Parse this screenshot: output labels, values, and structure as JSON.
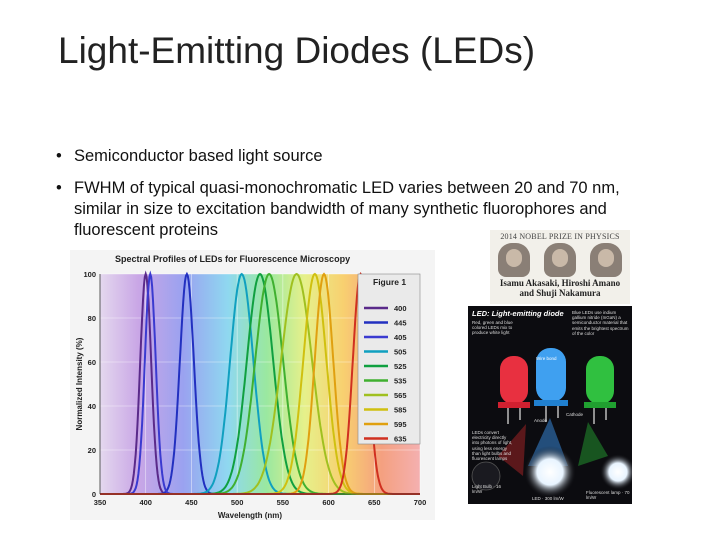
{
  "slide": {
    "title": "Light-Emitting Diodes (LEDs)",
    "bullets": [
      "Semiconductor based light source",
      "FWHM of typical quasi-monochromatic LED varies between 20 and 70 nm, similar in size to excitation bandwidth of many synthetic fluorophores and fluorescent proteins"
    ],
    "bullet_glyph": "•"
  },
  "chart_data": {
    "type": "line",
    "title": "Spectral Profiles of LEDs for Fluorescence Microscopy",
    "figure_label": "Figure 1",
    "xlabel": "Wavelength (nm)",
    "ylabel": "Normalized Intensity (%)",
    "xlim": [
      350,
      700
    ],
    "ylim": [
      0,
      100
    ],
    "xticks": [
      350,
      400,
      450,
      500,
      550,
      600,
      650,
      700
    ],
    "yticks": [
      0,
      20,
      40,
      60,
      80,
      100
    ],
    "legend_position": "right",
    "series": [
      {
        "name": "400",
        "peak": 400,
        "fwhm": 14,
        "color": "#5a2a8a"
      },
      {
        "name": "445",
        "peak": 445,
        "fwhm": 18,
        "color": "#2230c0"
      },
      {
        "name": "405",
        "peak": 405,
        "fwhm": 14,
        "color": "#3a3ad0"
      },
      {
        "name": "505",
        "peak": 505,
        "fwhm": 30,
        "color": "#10a0c0"
      },
      {
        "name": "525",
        "peak": 525,
        "fwhm": 34,
        "color": "#10a040"
      },
      {
        "name": "535",
        "peak": 535,
        "fwhm": 36,
        "color": "#40b030"
      },
      {
        "name": "565",
        "peak": 565,
        "fwhm": 40,
        "color": "#a0c020"
      },
      {
        "name": "585",
        "peak": 585,
        "fwhm": 30,
        "color": "#d0c010"
      },
      {
        "name": "595",
        "peak": 595,
        "fwhm": 24,
        "color": "#e0a010"
      },
      {
        "name": "635",
        "peak": 635,
        "fwhm": 20,
        "color": "#d03020"
      }
    ]
  },
  "nobel": {
    "header": "2014 NOBEL PRIZE IN PHYSICS",
    "names_line1": "Isamu Akasaki, Hiroshi Amano",
    "names_line2": "and Shuji Nakamura"
  },
  "led_diagram": {
    "title": "LED: Light-emitting diode",
    "left_note": "Red, green and blue colored LEDs mix to produce white light",
    "right_note": "Blue LEDs use indium gallium nitride (InGaN) a semiconductor material that emits the brightest spectrum of the color",
    "wire_bond": "Wire bond",
    "anode": "Anode",
    "cathode": "Cathode",
    "bottom_note": "LEDs convert electricity directly into photons of light, using less energy than light bulbs and fluorescent lamps",
    "light_bulb": "Light Bulb · 16 lm/W",
    "led_efficiency": "LED · 300 lm/W",
    "fluorescent": "Fluorescent lamp · 70 lm/W"
  }
}
